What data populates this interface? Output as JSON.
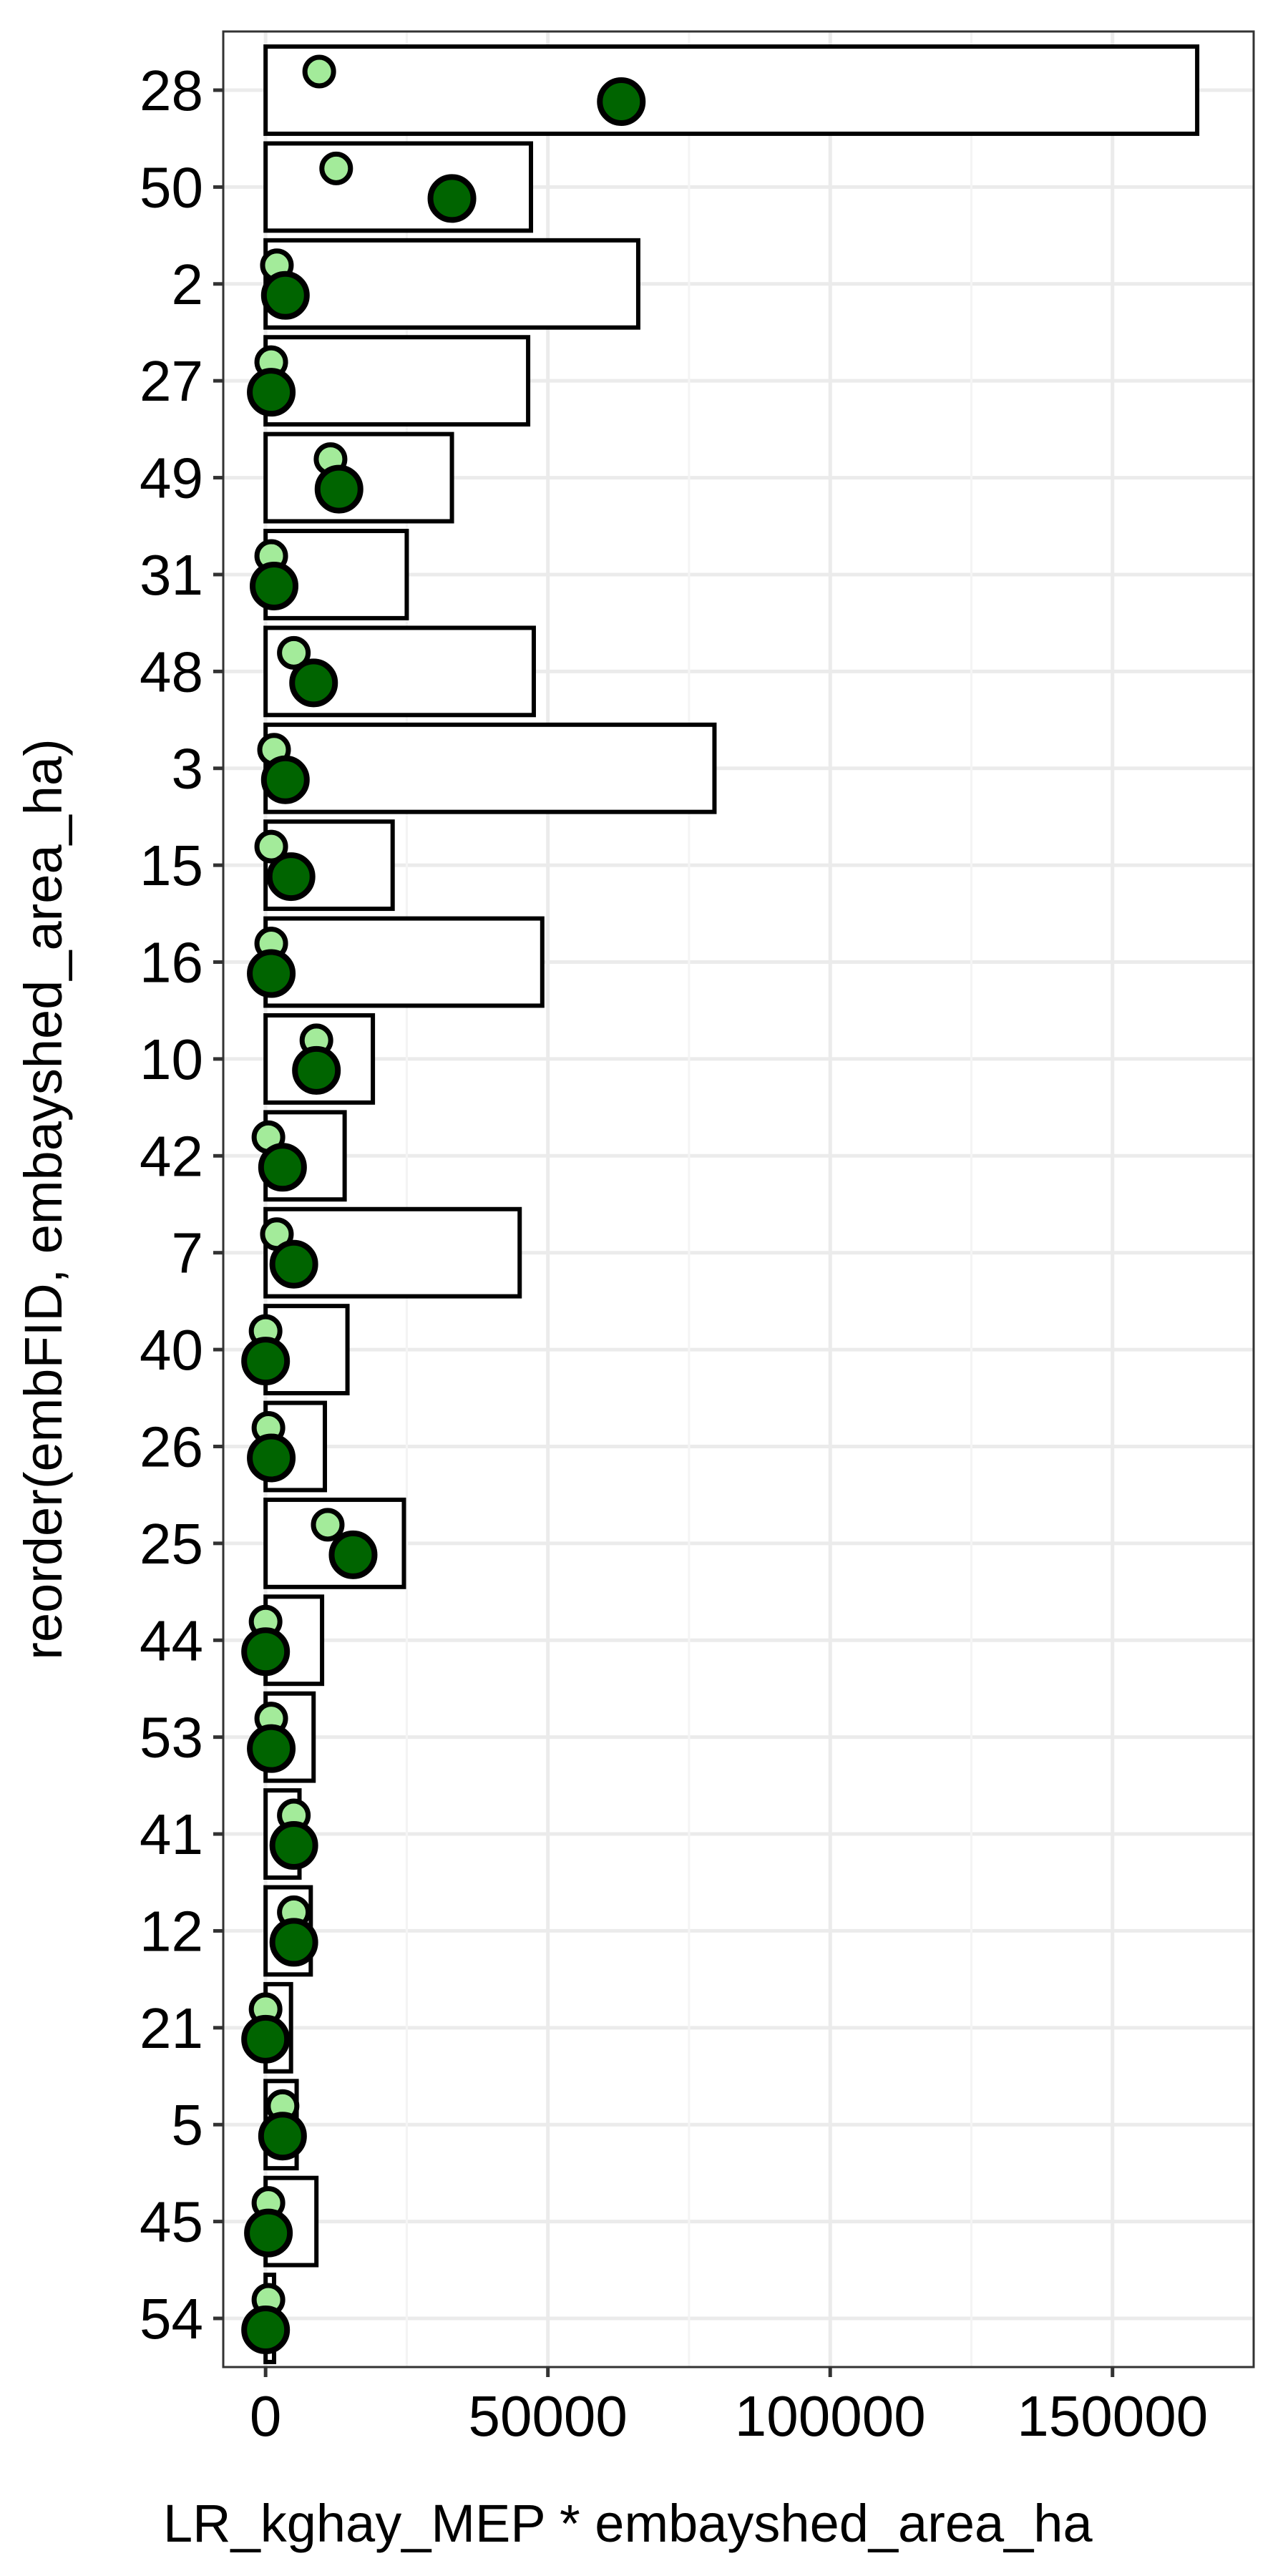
{
  "chart_data": {
    "type": "bar",
    "xlabel": "LR_kghay_MEP * embayshed_area_ha",
    "ylabel": "reorder(embFID, embayshed_area_ha)",
    "categories": [
      "28",
      "50",
      "2",
      "27",
      "49",
      "31",
      "48",
      "3",
      "15",
      "16",
      "10",
      "42",
      "7",
      "40",
      "26",
      "25",
      "44",
      "53",
      "41",
      "12",
      "21",
      "5",
      "45",
      "54"
    ],
    "xlim": [
      -7500,
      175000
    ],
    "xticks": [
      0,
      50000,
      100000,
      150000
    ],
    "xtick_labels": [
      "0",
      "50000",
      "100000",
      "150000"
    ],
    "grid": true,
    "series": [
      {
        "kind": "bar",
        "fill": "#ffffff",
        "stroke": "#000000",
        "values": [
          165000,
          47000,
          66000,
          46500,
          33000,
          25000,
          47500,
          79500,
          22500,
          49000,
          19000,
          14000,
          45000,
          14500,
          10500,
          24500,
          10000,
          8500,
          6000,
          8000,
          4500,
          5500,
          9000,
          1500
        ]
      },
      {
        "kind": "point",
        "color": "#a3eb9a",
        "size": "small",
        "values": [
          9500,
          12500,
          2000,
          1000,
          11500,
          1000,
          5000,
          1500,
          1000,
          1000,
          9000,
          500,
          2000,
          0,
          500,
          11000,
          0,
          1000,
          5000,
          5000,
          0,
          3000,
          500,
          500
        ]
      },
      {
        "kind": "point",
        "color": "#006400",
        "size": "large",
        "values": [
          63000,
          33000,
          3500,
          1000,
          13000,
          1500,
          8500,
          3500,
          4500,
          1000,
          9000,
          3000,
          5000,
          0,
          1000,
          15500,
          0,
          1000,
          5000,
          5000,
          0,
          3000,
          500,
          0
        ]
      }
    ]
  }
}
